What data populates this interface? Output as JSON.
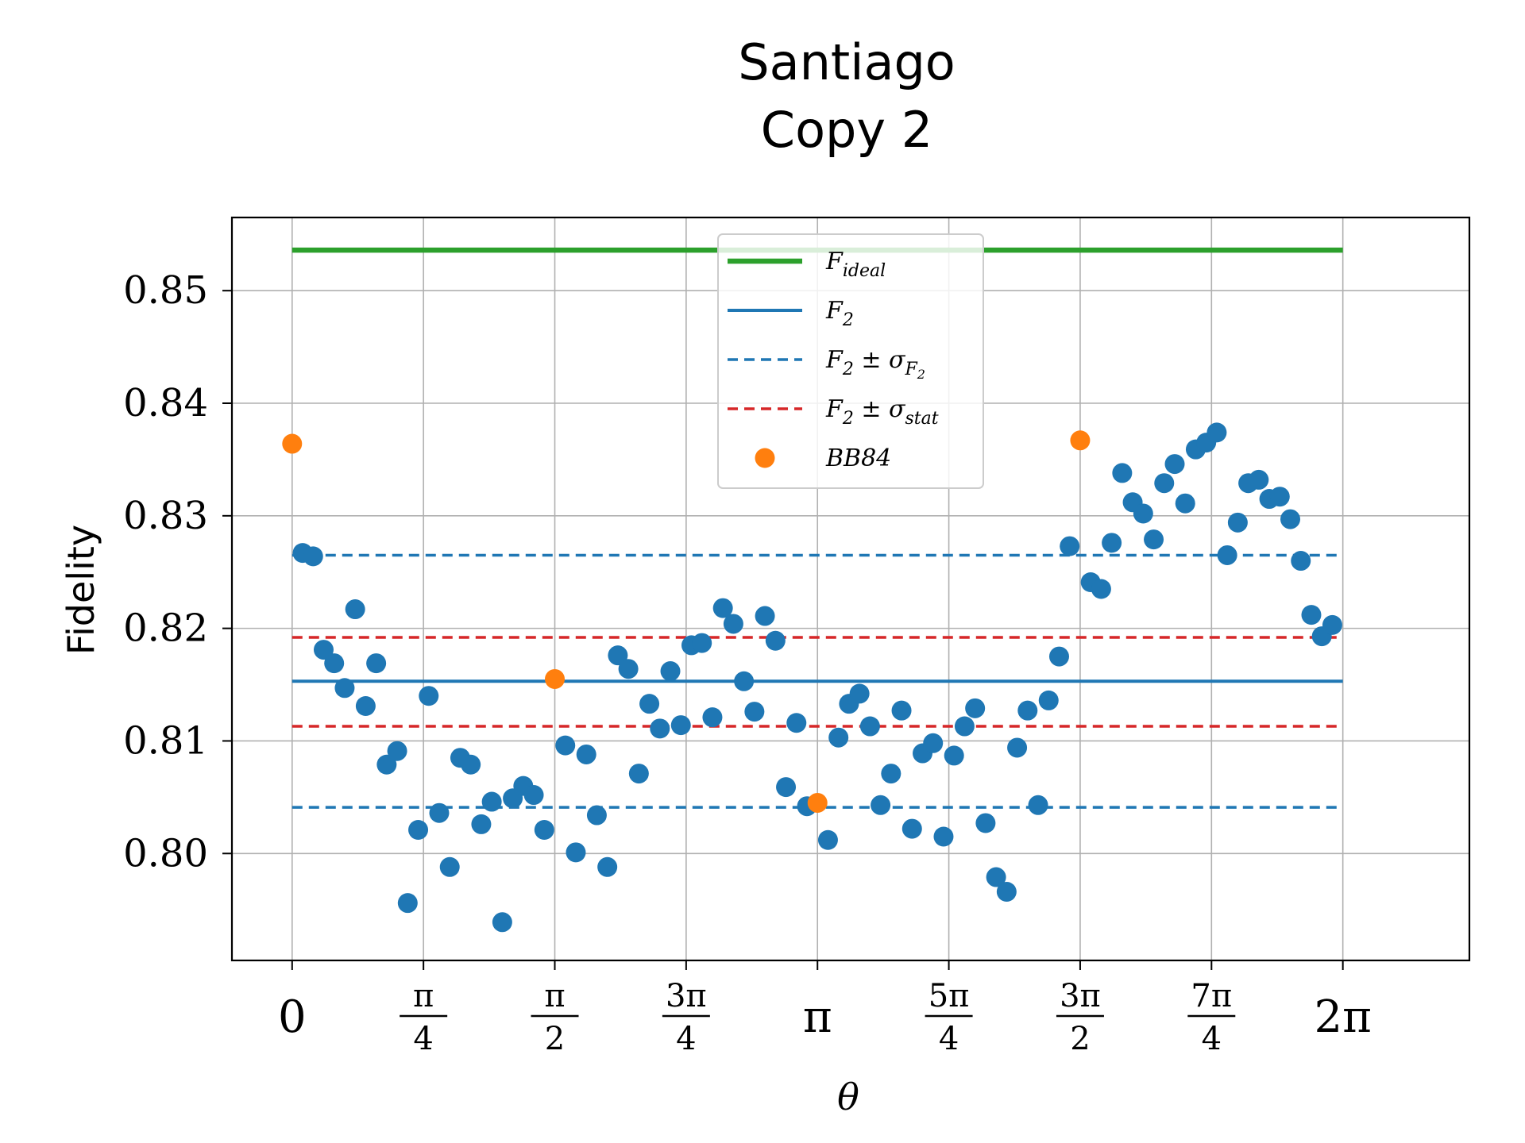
{
  "chart_data": {
    "type": "scatter",
    "title_lines": [
      "Santiago",
      "Copy 2"
    ],
    "xlabel": "θ",
    "ylabel": "Fidelity",
    "xlim": [
      -0.36,
      7.04
    ],
    "ylim": [
      0.7905,
      0.8565
    ],
    "grid": true,
    "legend_position": "upper center",
    "x_ticks": [
      {
        "value": 0,
        "label": "0"
      },
      {
        "value": 0.7854,
        "num": "π",
        "den": "4"
      },
      {
        "value": 1.5708,
        "num": "π",
        "den": "2"
      },
      {
        "value": 2.3562,
        "num": "3π",
        "den": "4"
      },
      {
        "value": 3.1416,
        "label": "π"
      },
      {
        "value": 3.927,
        "num": "5π",
        "den": "4"
      },
      {
        "value": 4.7124,
        "num": "3π",
        "den": "2"
      },
      {
        "value": 5.4978,
        "num": "7π",
        "den": "4"
      },
      {
        "value": 6.2832,
        "label": "2π"
      }
    ],
    "y_ticks": [
      {
        "value": 0.8,
        "label": "0.80"
      },
      {
        "value": 0.81,
        "label": "0.81"
      },
      {
        "value": 0.82,
        "label": "0.82"
      },
      {
        "value": 0.83,
        "label": "0.83"
      },
      {
        "value": 0.84,
        "label": "0.84"
      },
      {
        "value": 0.85,
        "label": "0.85"
      }
    ],
    "lines": [
      {
        "key": "f-ideal",
        "y": 0.8536,
        "x": [
          0,
          6.2832
        ],
        "color": "#2ca02c",
        "style": "solid",
        "width": 6.5
      },
      {
        "key": "f2",
        "y": 0.8153,
        "x": [
          0,
          6.2832
        ],
        "color": "#1f77b4",
        "style": "solid",
        "width": 4
      },
      {
        "key": "f2-sigma-upper",
        "y": 0.8265,
        "x": [
          0,
          6.2832
        ],
        "color": "#1f77b4",
        "style": "dashed",
        "width": 3.5
      },
      {
        "key": "f2-sigma-lower",
        "y": 0.8041,
        "x": [
          0,
          6.2832
        ],
        "color": "#1f77b4",
        "style": "dashed",
        "width": 3.5
      },
      {
        "key": "f2-stat-upper",
        "y": 0.8192,
        "x": [
          0,
          6.2832
        ],
        "color": "#d62728",
        "style": "dashed",
        "width": 3.5
      },
      {
        "key": "f2-stat-lower",
        "y": 0.8113,
        "x": [
          0,
          6.2832
        ],
        "color": "#d62728",
        "style": "dashed",
        "width": 3.5
      }
    ],
    "series": [
      {
        "key": "measurements",
        "color": "#1f77b4",
        "x": [
          0.0628,
          0.1257,
          0.1885,
          0.2513,
          0.3142,
          0.377,
          0.4398,
          0.5027,
          0.5655,
          0.6283,
          0.6912,
          0.754,
          0.8168,
          0.8796,
          0.9425,
          1.0053,
          1.0681,
          1.131,
          1.1938,
          1.2566,
          1.3195,
          1.3823,
          1.4451,
          1.508,
          1.6336,
          1.6965,
          1.7593,
          1.8221,
          1.885,
          1.9478,
          2.0106,
          2.0735,
          2.1363,
          2.1991,
          2.2619,
          2.3248,
          2.3876,
          2.4504,
          2.5133,
          2.5761,
          2.6389,
          2.7018,
          2.7646,
          2.8274,
          2.8903,
          2.9531,
          3.0159,
          3.0788,
          3.2044,
          3.2673,
          3.3301,
          3.3929,
          3.4558,
          3.5186,
          3.5814,
          3.6442,
          3.7071,
          3.7699,
          3.8327,
          3.8956,
          3.9584,
          4.0212,
          4.0841,
          4.1469,
          4.2097,
          4.2726,
          4.3354,
          4.3982,
          4.4611,
          4.5239,
          4.5867,
          4.6496,
          4.7752,
          4.8381,
          4.9009,
          4.9637,
          5.0265,
          5.0894,
          5.1522,
          5.215,
          5.2779,
          5.3407,
          5.4035,
          5.4664,
          5.5292,
          5.592,
          5.6549,
          5.7177,
          5.7805,
          5.8434,
          5.9062,
          5.969,
          6.0319,
          6.0947,
          6.1575,
          6.2204
        ],
        "y": [
          0.8267,
          0.8264,
          0.8181,
          0.8169,
          0.8147,
          0.8217,
          0.8131,
          0.8169,
          0.8079,
          0.8091,
          0.7956,
          0.8021,
          0.814,
          0.8036,
          0.7988,
          0.8085,
          0.8079,
          0.8026,
          0.8046,
          0.7939,
          0.8049,
          0.806,
          0.8052,
          0.8021,
          0.8096,
          0.8001,
          0.8088,
          0.8034,
          0.7988,
          0.8176,
          0.8164,
          0.8071,
          0.8133,
          0.8111,
          0.8162,
          0.8114,
          0.8185,
          0.8187,
          0.8121,
          0.8218,
          0.8204,
          0.8153,
          0.8126,
          0.8211,
          0.8189,
          0.8059,
          0.8116,
          0.8042,
          0.8012,
          0.8103,
          0.8133,
          0.8142,
          0.8113,
          0.8043,
          0.8071,
          0.8127,
          0.8022,
          0.8089,
          0.8098,
          0.8015,
          0.8087,
          0.8113,
          0.8129,
          0.8027,
          0.7979,
          0.7966,
          0.8094,
          0.8127,
          0.8043,
          0.8136,
          0.8175,
          0.8273,
          0.8241,
          0.8235,
          0.8276,
          0.8338,
          0.8312,
          0.8302,
          0.8279,
          0.8329,
          0.8346,
          0.8311,
          0.8359,
          0.8365,
          0.8374,
          0.8265,
          0.8294,
          0.8329,
          0.8332,
          0.8315,
          0.8317,
          0.8297,
          0.826,
          0.8212,
          0.8193,
          0.8203
        ]
      },
      {
        "key": "bb84",
        "color": "#ff7f0e",
        "x": [
          0,
          1.5708,
          3.1416,
          4.7124
        ],
        "y": [
          0.8364,
          0.8155,
          0.8045,
          0.8367
        ]
      }
    ],
    "legend": [
      {
        "kind": "line",
        "ref": "f-ideal",
        "base": "F",
        "sub": "ideal",
        "suffix": "",
        "suffix_sub": "",
        "suffix_subsub": ""
      },
      {
        "kind": "line",
        "ref": "f2",
        "base": "F",
        "sub": "2",
        "suffix": "",
        "suffix_sub": "",
        "suffix_subsub": ""
      },
      {
        "kind": "line",
        "ref": "f2-sigma-upper",
        "base": "F",
        "sub": "2",
        "suffix": " ± σ",
        "suffix_sub": "F",
        "suffix_subsub": "2"
      },
      {
        "kind": "line",
        "ref": "f2-stat-upper",
        "base": "F",
        "sub": "2",
        "suffix": " ± σ",
        "suffix_sub": "stat",
        "suffix_subsub": ""
      },
      {
        "kind": "marker",
        "ref": "bb84",
        "base": "BB84",
        "sub": "",
        "suffix": "",
        "suffix_sub": "",
        "suffix_subsub": ""
      }
    ]
  }
}
